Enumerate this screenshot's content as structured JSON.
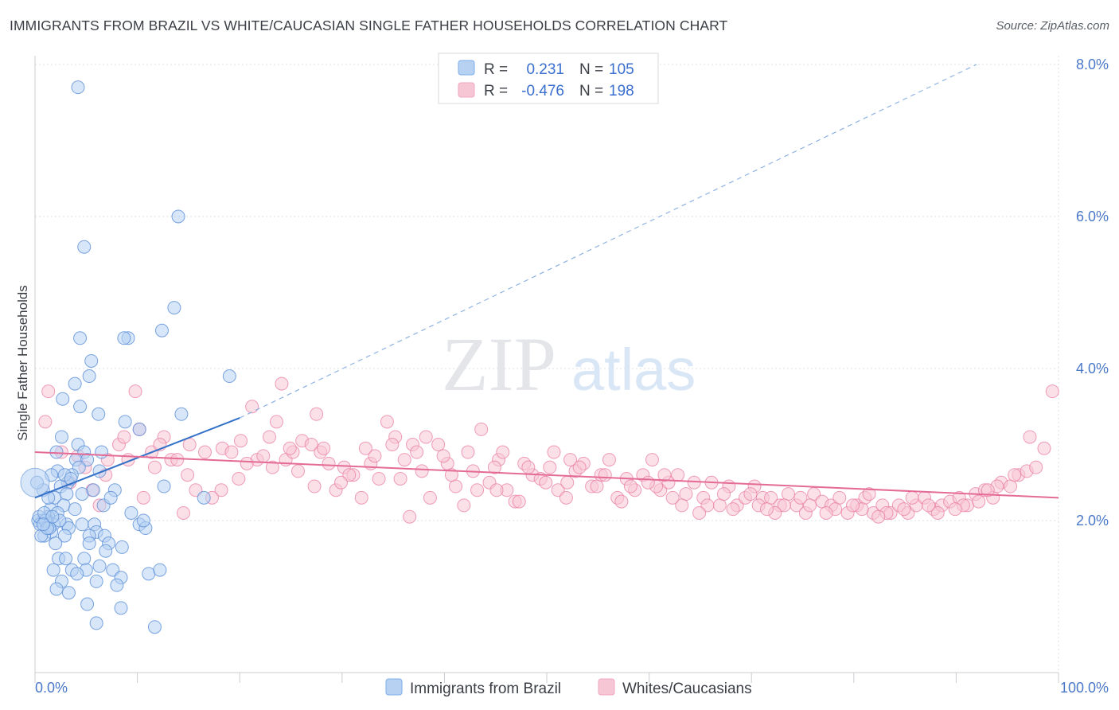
{
  "header": {
    "title": "IMMIGRANTS FROM BRAZIL VS WHITE/CAUCASIAN SINGLE FATHER HOUSEHOLDS CORRELATION CHART",
    "source": "Source: ZipAtlas.com"
  },
  "watermark": {
    "zip": "ZIP",
    "atlas": "atlas"
  },
  "legend": {
    "r_label": "R =",
    "n_label": "N =",
    "rows": [
      {
        "r": "0.231",
        "n": "105",
        "color": "#7eaee8"
      },
      {
        "r": "-0.476",
        "n": "198",
        "color": "#f2a7bf"
      }
    ]
  },
  "colors": {
    "blue": "#5b8fd8",
    "blue_fill": "#b7d1f3",
    "pink": "#e8769c",
    "pink_fill": "#f7c6d5",
    "axis_text": "#4a78c9"
  },
  "chart_data": {
    "type": "scatter",
    "title": "IMMIGRANTS FROM BRAZIL VS WHITE/CAUCASIAN SINGLE FATHER HOUSEHOLDS CORRELATION CHART",
    "xlabel": "",
    "ylabel": "Single Father Households",
    "xlim": [
      0,
      100
    ],
    "ylim": [
      0,
      8.3
    ],
    "y_ticks": [
      2.0,
      4.0,
      6.0,
      8.0
    ],
    "y_tick_labels": [
      "2.0%",
      "4.0%",
      "6.0%",
      "8.0%"
    ],
    "x_tick_labels": [
      "0.0%",
      "100.0%"
    ],
    "grid": true,
    "legend_placement": "bottom-center",
    "series": [
      {
        "name": "Immigrants from Brazil",
        "trend": {
          "x0": 0,
          "y0": 2.3,
          "x1": 20,
          "y1": 3.35,
          "dashed_to_x": 92,
          "dashed_to_y": 8.0
        },
        "points": [
          [
            4.2,
            7.7
          ],
          [
            14,
            6.0
          ],
          [
            4.8,
            5.6
          ],
          [
            13.6,
            4.8
          ],
          [
            12.4,
            4.5
          ],
          [
            9.1,
            4.4
          ],
          [
            8.7,
            4.4
          ],
          [
            4.4,
            4.4
          ],
          [
            5.5,
            4.1
          ],
          [
            19,
            3.9
          ],
          [
            5.3,
            3.9
          ],
          [
            3.9,
            3.8
          ],
          [
            2.7,
            3.6
          ],
          [
            4.4,
            3.5
          ],
          [
            14.3,
            3.4
          ],
          [
            6.2,
            3.4
          ],
          [
            8.8,
            3.3
          ],
          [
            10.2,
            3.2
          ],
          [
            2.6,
            3.1
          ],
          [
            4.2,
            3.0
          ],
          [
            2.1,
            2.9
          ],
          [
            4.8,
            2.9
          ],
          [
            6.5,
            2.9
          ],
          [
            4.0,
            2.8
          ],
          [
            5.1,
            2.8
          ],
          [
            2.2,
            2.65
          ],
          [
            4.3,
            2.7
          ],
          [
            6.3,
            2.65
          ],
          [
            3.6,
            2.6
          ],
          [
            1.6,
            2.6
          ],
          [
            3.2,
            2.5
          ],
          [
            2.5,
            2.45
          ],
          [
            12.6,
            2.45
          ],
          [
            7.8,
            2.4
          ],
          [
            3.1,
            2.35
          ],
          [
            4.6,
            2.35
          ],
          [
            0.8,
            2.4
          ],
          [
            1.9,
            2.3
          ],
          [
            16.5,
            2.3
          ],
          [
            2.8,
            2.2
          ],
          [
            3.9,
            2.15
          ],
          [
            1.5,
            2.15
          ],
          [
            2.2,
            2.1
          ],
          [
            1.3,
            2.05
          ],
          [
            0.7,
            2.0
          ],
          [
            1.1,
            2.0
          ],
          [
            0.3,
            2.0
          ],
          [
            0.5,
            1.95
          ],
          [
            1.8,
            1.95
          ],
          [
            3.1,
            1.95
          ],
          [
            4.6,
            1.95
          ],
          [
            5.8,
            1.95
          ],
          [
            10.2,
            1.95
          ],
          [
            10.8,
            1.9
          ],
          [
            3.3,
            1.9
          ],
          [
            6.0,
            1.85
          ],
          [
            1.6,
            1.85
          ],
          [
            0.9,
            1.8
          ],
          [
            2.9,
            1.8
          ],
          [
            5.3,
            1.8
          ],
          [
            6.8,
            1.8
          ],
          [
            7.2,
            1.7
          ],
          [
            5.3,
            1.7
          ],
          [
            8.5,
            1.65
          ],
          [
            6.9,
            1.6
          ],
          [
            2.3,
            1.5
          ],
          [
            3.0,
            1.5
          ],
          [
            4.8,
            1.5
          ],
          [
            6.3,
            1.4
          ],
          [
            1.8,
            1.35
          ],
          [
            3.6,
            1.35
          ],
          [
            5.0,
            1.35
          ],
          [
            7.6,
            1.35
          ],
          [
            11.1,
            1.3
          ],
          [
            8.4,
            1.25
          ],
          [
            2.6,
            1.2
          ],
          [
            6.0,
            1.2
          ],
          [
            4.1,
            1.3
          ],
          [
            12.2,
            1.35
          ],
          [
            8.0,
            1.15
          ],
          [
            2.1,
            1.1
          ],
          [
            3.3,
            1.05
          ],
          [
            5.1,
            0.9
          ],
          [
            8.4,
            0.85
          ],
          [
            6.0,
            0.65
          ],
          [
            11.7,
            0.6
          ],
          [
            0.2,
            2.5
          ],
          [
            0.4,
            2.05
          ],
          [
            1.0,
            2.0
          ],
          [
            1.4,
            1.9
          ],
          [
            2.4,
            2.0
          ],
          [
            0.6,
            1.8
          ],
          [
            1.2,
            1.9
          ],
          [
            0.9,
            2.1
          ],
          [
            1.7,
            2.05
          ],
          [
            2.9,
            2.6
          ],
          [
            3.5,
            2.55
          ],
          [
            6.7,
            2.2
          ],
          [
            10.6,
            2.0
          ],
          [
            7.4,
            2.3
          ],
          [
            5.7,
            2.4
          ],
          [
            9.4,
            2.1
          ],
          [
            1.3,
            2.3
          ],
          [
            0.8,
            1.95
          ],
          [
            2.0,
            1.7
          ]
        ]
      },
      {
        "name": "Whites/Caucasians",
        "trend": {
          "x0": 0,
          "y0": 2.9,
          "x1": 100,
          "y1": 2.3
        },
        "points": [
          [
            1.3,
            3.7
          ],
          [
            1.0,
            3.3
          ],
          [
            9.8,
            3.7
          ],
          [
            24.1,
            3.8
          ],
          [
            27.5,
            3.4
          ],
          [
            21.2,
            3.5
          ],
          [
            15.7,
            2.4
          ],
          [
            8.2,
            3.0
          ],
          [
            10.2,
            3.2
          ],
          [
            11.4,
            2.9
          ],
          [
            13.3,
            2.8
          ],
          [
            12.6,
            3.1
          ],
          [
            14.9,
            2.6
          ],
          [
            16.6,
            2.9
          ],
          [
            18.3,
            2.95
          ],
          [
            19.2,
            2.9
          ],
          [
            20.1,
            3.05
          ],
          [
            21.7,
            2.8
          ],
          [
            22.9,
            3.1
          ],
          [
            23.6,
            3.3
          ],
          [
            24.5,
            2.8
          ],
          [
            25.2,
            2.9
          ],
          [
            26.1,
            3.05
          ],
          [
            27.0,
            3.0
          ],
          [
            27.9,
            2.9
          ],
          [
            28.7,
            2.75
          ],
          [
            29.4,
            2.4
          ],
          [
            30.2,
            2.7
          ],
          [
            31.1,
            2.6
          ],
          [
            31.9,
            2.3
          ],
          [
            32.8,
            2.75
          ],
          [
            33.6,
            2.55
          ],
          [
            34.4,
            3.3
          ],
          [
            35.2,
            3.1
          ],
          [
            36.1,
            2.8
          ],
          [
            36.9,
            3.0
          ],
          [
            37.8,
            2.65
          ],
          [
            38.6,
            2.3
          ],
          [
            39.4,
            3.0
          ],
          [
            40.3,
            2.75
          ],
          [
            41.1,
            2.45
          ],
          [
            41.9,
            2.2
          ],
          [
            42.8,
            2.65
          ],
          [
            43.6,
            3.2
          ],
          [
            44.4,
            2.5
          ],
          [
            45.3,
            2.8
          ],
          [
            46.1,
            2.4
          ],
          [
            46.9,
            2.25
          ],
          [
            47.8,
            2.75
          ],
          [
            48.6,
            2.6
          ],
          [
            49.4,
            2.55
          ],
          [
            50.3,
            2.7
          ],
          [
            51.1,
            2.4
          ],
          [
            51.9,
            2.3
          ],
          [
            52.8,
            2.65
          ],
          [
            53.6,
            2.75
          ],
          [
            54.4,
            2.45
          ],
          [
            55.3,
            2.6
          ],
          [
            56.1,
            2.8
          ],
          [
            56.9,
            2.3
          ],
          [
            57.8,
            2.55
          ],
          [
            58.6,
            2.4
          ],
          [
            59.4,
            2.6
          ],
          [
            60.3,
            2.8
          ],
          [
            61.1,
            2.4
          ],
          [
            61.9,
            2.5
          ],
          [
            62.8,
            2.6
          ],
          [
            63.6,
            2.35
          ],
          [
            64.4,
            2.5
          ],
          [
            65.3,
            2.3
          ],
          [
            66.1,
            2.5
          ],
          [
            66.9,
            2.2
          ],
          [
            67.8,
            2.45
          ],
          [
            68.6,
            2.2
          ],
          [
            69.4,
            2.3
          ],
          [
            70.3,
            2.45
          ],
          [
            71.1,
            2.3
          ],
          [
            71.9,
            2.3
          ],
          [
            72.8,
            2.2
          ],
          [
            73.6,
            2.35
          ],
          [
            74.4,
            2.2
          ],
          [
            75.3,
            2.1
          ],
          [
            76.1,
            2.35
          ],
          [
            76.9,
            2.25
          ],
          [
            77.8,
            2.2
          ],
          [
            78.6,
            2.3
          ],
          [
            79.4,
            2.1
          ],
          [
            80.3,
            2.2
          ],
          [
            81.1,
            2.3
          ],
          [
            81.9,
            2.1
          ],
          [
            82.8,
            2.2
          ],
          [
            83.6,
            2.1
          ],
          [
            84.4,
            2.2
          ],
          [
            85.3,
            2.1
          ],
          [
            86.1,
            2.2
          ],
          [
            86.9,
            2.3
          ],
          [
            87.8,
            2.15
          ],
          [
            88.6,
            2.2
          ],
          [
            89.4,
            2.25
          ],
          [
            90.3,
            2.3
          ],
          [
            91.1,
            2.2
          ],
          [
            91.9,
            2.35
          ],
          [
            92.8,
            2.4
          ],
          [
            93.6,
            2.3
          ],
          [
            94.4,
            2.5
          ],
          [
            95.3,
            2.45
          ],
          [
            96.1,
            2.6
          ],
          [
            96.9,
            2.65
          ],
          [
            97.8,
            2.7
          ],
          [
            98.6,
            2.95
          ],
          [
            99.4,
            3.7
          ],
          [
            97.2,
            3.1
          ],
          [
            95.7,
            2.6
          ],
          [
            94.0,
            2.45
          ],
          [
            93.1,
            2.4
          ],
          [
            92.2,
            2.25
          ],
          [
            90.7,
            2.2
          ],
          [
            89.9,
            2.15
          ],
          [
            88.2,
            2.1
          ],
          [
            87.3,
            2.2
          ],
          [
            85.7,
            2.3
          ],
          [
            84.9,
            2.15
          ],
          [
            83.2,
            2.1
          ],
          [
            82.4,
            2.05
          ],
          [
            80.8,
            2.15
          ],
          [
            79.9,
            2.2
          ],
          [
            78.2,
            2.15
          ],
          [
            77.3,
            2.1
          ],
          [
            75.7,
            2.2
          ],
          [
            74.8,
            2.3
          ],
          [
            73.2,
            2.2
          ],
          [
            72.3,
            2.1
          ],
          [
            70.7,
            2.2
          ],
          [
            69.9,
            2.35
          ],
          [
            68.2,
            2.15
          ],
          [
            67.3,
            2.35
          ],
          [
            65.7,
            2.2
          ],
          [
            64.9,
            2.1
          ],
          [
            63.2,
            2.2
          ],
          [
            62.3,
            2.3
          ],
          [
            60.7,
            2.45
          ],
          [
            59.9,
            2.5
          ],
          [
            58.2,
            2.45
          ],
          [
            57.3,
            2.25
          ],
          [
            55.7,
            2.6
          ],
          [
            54.9,
            2.45
          ],
          [
            53.2,
            2.7
          ],
          [
            52.3,
            2.8
          ],
          [
            50.7,
            2.9
          ],
          [
            49.9,
            2.5
          ],
          [
            48.2,
            2.7
          ],
          [
            47.3,
            2.25
          ],
          [
            45.7,
            2.9
          ],
          [
            44.9,
            2.7
          ],
          [
            43.2,
            2.4
          ],
          [
            42.3,
            2.9
          ],
          [
            40.7,
            2.6
          ],
          [
            39.9,
            2.85
          ],
          [
            38.2,
            3.1
          ],
          [
            37.3,
            2.9
          ],
          [
            35.7,
            2.55
          ],
          [
            34.9,
            3.0
          ],
          [
            33.2,
            2.85
          ],
          [
            32.3,
            2.95
          ],
          [
            30.7,
            2.6
          ],
          [
            29.9,
            2.5
          ],
          [
            28.2,
            2.95
          ],
          [
            27.3,
            2.45
          ],
          [
            25.7,
            2.65
          ],
          [
            24.9,
            2.95
          ],
          [
            23.2,
            2.7
          ],
          [
            22.3,
            2.85
          ],
          [
            20.7,
            2.75
          ],
          [
            19.9,
            2.55
          ],
          [
            18.2,
            2.4
          ],
          [
            17.3,
            2.3
          ],
          [
            15.1,
            3.0
          ],
          [
            14.5,
            2.1
          ],
          [
            13.9,
            2.8
          ],
          [
            12.2,
            3.0
          ],
          [
            11.7,
            2.7
          ],
          [
            10.6,
            2.3
          ],
          [
            9.1,
            2.8
          ],
          [
            8.7,
            3.1
          ],
          [
            7.1,
            2.8
          ],
          [
            6.3,
            2.2
          ],
          [
            5.6,
            2.4
          ],
          [
            4.9,
            2.7
          ],
          [
            4.2,
            2.85
          ],
          [
            3.4,
            2.5
          ],
          [
            2.6,
            2.9
          ],
          [
            6.9,
            2.6
          ],
          [
            36.6,
            2.05
          ],
          [
            45.1,
            2.4
          ],
          [
            52.0,
            2.5
          ],
          [
            61.5,
            2.6
          ],
          [
            71.5,
            2.15
          ],
          [
            81.5,
            2.35
          ]
        ]
      }
    ]
  },
  "bottom_legend": [
    {
      "label": "Immigrants from Brazil"
    },
    {
      "label": "Whites/Caucasians"
    }
  ]
}
